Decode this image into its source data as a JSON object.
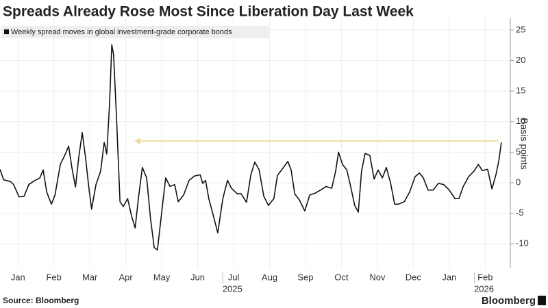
{
  "chart_data": {
    "type": "line",
    "title": "Spreads Already Rose Most Since Liberation Day Last Week",
    "series": [
      {
        "name": "Weekly spread moves in global investment-grade corporate bonds",
        "color": "#111111",
        "values": [
          2.2,
          0.5,
          0.2,
          -0.3,
          -2.3,
          -2.2,
          -0.3,
          0.3,
          0.8,
          2.1,
          -1.5,
          -3.5,
          -2,
          3,
          4.6,
          6,
          2.5,
          -0.7,
          4.1,
          8.2,
          4.1,
          -1.2,
          -4.3,
          -0.3,
          1.9,
          6.6,
          4.7,
          13,
          22.6,
          21,
          10.9,
          -3.1,
          -3.9,
          -2.6,
          -5.4,
          -7.4,
          -2.6,
          2.5,
          0.8,
          -5.9,
          -10.6,
          -11,
          -4.8,
          0.8,
          -0.6,
          -0.3,
          -3.1,
          -2,
          0.4,
          1.1,
          1.3,
          -0.1,
          0.4,
          -2.6,
          -4.8,
          -8.2,
          -2.6,
          0.4,
          -0.9,
          -1.8,
          -1.8,
          -3.2,
          1.3,
          3.4,
          2.1,
          -2.2,
          -3.7,
          -2.6,
          1.2,
          2.2,
          3.5,
          2.1,
          -1.8,
          -2.8,
          -4.6,
          -2,
          -1.7,
          -1.2,
          -0.6,
          -0.9,
          1.9,
          5,
          3,
          2.1,
          -0.7,
          -3.7,
          -4.8,
          1.9,
          4.8,
          4.5,
          0.6,
          2.1,
          0.8,
          2.5,
          -0.1,
          -3.5,
          -3.5,
          -3.1,
          -1.5,
          1,
          1.6,
          0.8,
          -1.2,
          -1.2,
          -0.1,
          -0.3,
          -1.2,
          -2.6,
          -2.6,
          -0.6,
          1,
          1.9,
          3,
          2,
          2.2,
          -1,
          1.3,
          3.6,
          6.6
        ]
      }
    ],
    "x": [
      0,
      0.1,
      0.29,
      0.38,
      0.53,
      0.67,
      0.8,
      0.95,
      1.11,
      1.2,
      1.3,
      1.43,
      1.53,
      1.68,
      1.81,
      1.91,
      2.0,
      2.1,
      2.19,
      2.29,
      2.38,
      2.48,
      2.55,
      2.67,
      2.8,
      2.9,
      2.97,
      3.05,
      3.11,
      3.16,
      3.24,
      3.34,
      3.43,
      3.55,
      3.66,
      3.76,
      3.85,
      3.96,
      4.08,
      4.19,
      4.29,
      4.38,
      4.5,
      4.61,
      4.73,
      4.86,
      4.96,
      5.11,
      5.26,
      5.41,
      5.57,
      5.64,
      5.72,
      5.81,
      5.91,
      6.06,
      6.2,
      6.33,
      6.44,
      6.6,
      6.71,
      6.86,
      6.98,
      7.09,
      7.21,
      7.34,
      7.47,
      7.62,
      7.72,
      7.85,
      8.01,
      8.1,
      8.2,
      8.33,
      8.48,
      8.62,
      8.77,
      8.92,
      9.07,
      9.23,
      9.34,
      9.42,
      9.53,
      9.65,
      9.76,
      9.87,
      9.97,
      10.06,
      10.16,
      10.29,
      10.41,
      10.52,
      10.64,
      10.75,
      10.87,
      10.98,
      11.09,
      11.25,
      11.4,
      11.55,
      11.67,
      11.78,
      11.91,
      12.05,
      12.2,
      12.35,
      12.5,
      12.66,
      12.77,
      12.89,
      13.04,
      13.19,
      13.31,
      13.42,
      13.57,
      13.69,
      13.8,
      13.88,
      13.95
    ],
    "xlim": [
      0,
      14.2
    ],
    "xticks": [
      {
        "value": 0.5,
        "label": "Jan"
      },
      {
        "value": 1.5,
        "label": "Feb"
      },
      {
        "value": 2.5,
        "label": "Mar"
      },
      {
        "value": 3.5,
        "label": "Apr"
      },
      {
        "value": 4.5,
        "label": "May"
      },
      {
        "value": 5.5,
        "label": "Jun"
      },
      {
        "value": 6.5,
        "label": "Jul"
      },
      {
        "value": 7.5,
        "label": "Aug"
      },
      {
        "value": 8.5,
        "label": "Sep"
      },
      {
        "value": 9.5,
        "label": "Oct"
      },
      {
        "value": 10.5,
        "label": "Nov"
      },
      {
        "value": 11.5,
        "label": "Dec"
      },
      {
        "value": 12.5,
        "label": "Jan"
      },
      {
        "value": 13.5,
        "label": "Feb"
      }
    ],
    "x_year_labels": [
      {
        "value": 6.2,
        "label": "2025"
      },
      {
        "value": 13.2,
        "label": "2026"
      }
    ],
    "ylim": [
      -14,
      27
    ],
    "yticks": [
      -10,
      -5,
      0,
      5,
      10,
      15,
      20,
      25
    ],
    "y_axis_label": "Basis points",
    "grid": true,
    "source": "Source: Bloomberg",
    "brand": "Bloomberg"
  }
}
